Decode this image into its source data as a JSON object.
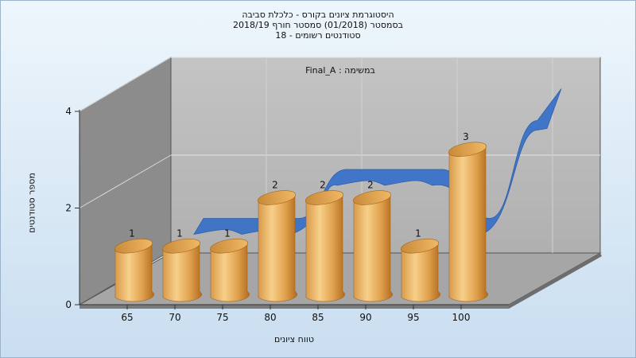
{
  "chart_data": {
    "type": "bar",
    "title_lines": [
      "היסטוגרמת ציונים בקורס - כלכלת סביבה",
      "בסמסטר  (01/2018)  סמסטר חורף  2018/19",
      "סטודנטים רשומים - 18"
    ],
    "subtitle": "Final_A : במשימה",
    "xlabel": "טווח ציונים",
    "ylabel": "מספר סטודנטים",
    "categories": [
      "65",
      "70",
      "75",
      "80",
      "85",
      "90",
      "95",
      "100"
    ],
    "series": [
      {
        "values": [
          1,
          1,
          1,
          2,
          2,
          2,
          1,
          3
        ]
      }
    ],
    "data_labels": [
      "1",
      "1",
      "1",
      "2",
      "2",
      "2",
      "1",
      "3"
    ],
    "y_ticks": [
      "0",
      "2",
      "4"
    ],
    "ylim": [
      0,
      4
    ],
    "curve": true,
    "grid": true,
    "legend": "none",
    "colors": {
      "bar_light": "#f5c97a",
      "bar_mid": "#e2a14a",
      "bar_dark": "#b56f1e",
      "curve": "#3a72c8",
      "back_wall": "#b9b9b9",
      "side_wall": "#8a8a8a",
      "floor": "#a4a4a4"
    }
  }
}
